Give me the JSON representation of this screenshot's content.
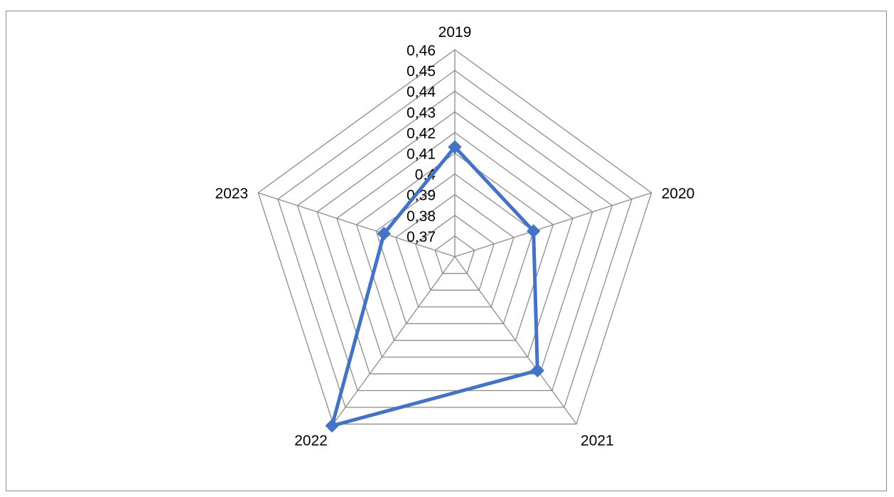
{
  "chart_data": {
    "type": "radar",
    "categories": [
      "2019",
      "2020",
      "2021",
      "2022",
      "2023"
    ],
    "series": [
      {
        "values": [
          0.413,
          0.4,
          0.428,
          0.461,
          0.396
        ]
      }
    ],
    "rlim": [
      0.36,
      0.46
    ],
    "ticks": [
      0.37,
      0.38,
      0.39,
      0.4,
      0.41,
      0.42,
      0.43,
      0.44,
      0.45,
      0.46
    ],
    "tick_labels": [
      "0,37",
      "0,38",
      "0,39",
      "0,4",
      "0,41",
      "0,42",
      "0,43",
      "0,44",
      "0,45",
      "0,46"
    ],
    "grid": true,
    "legend": "none",
    "title": "",
    "colors": {
      "series": "#4472c4",
      "grid": "#8c8c8c"
    }
  }
}
